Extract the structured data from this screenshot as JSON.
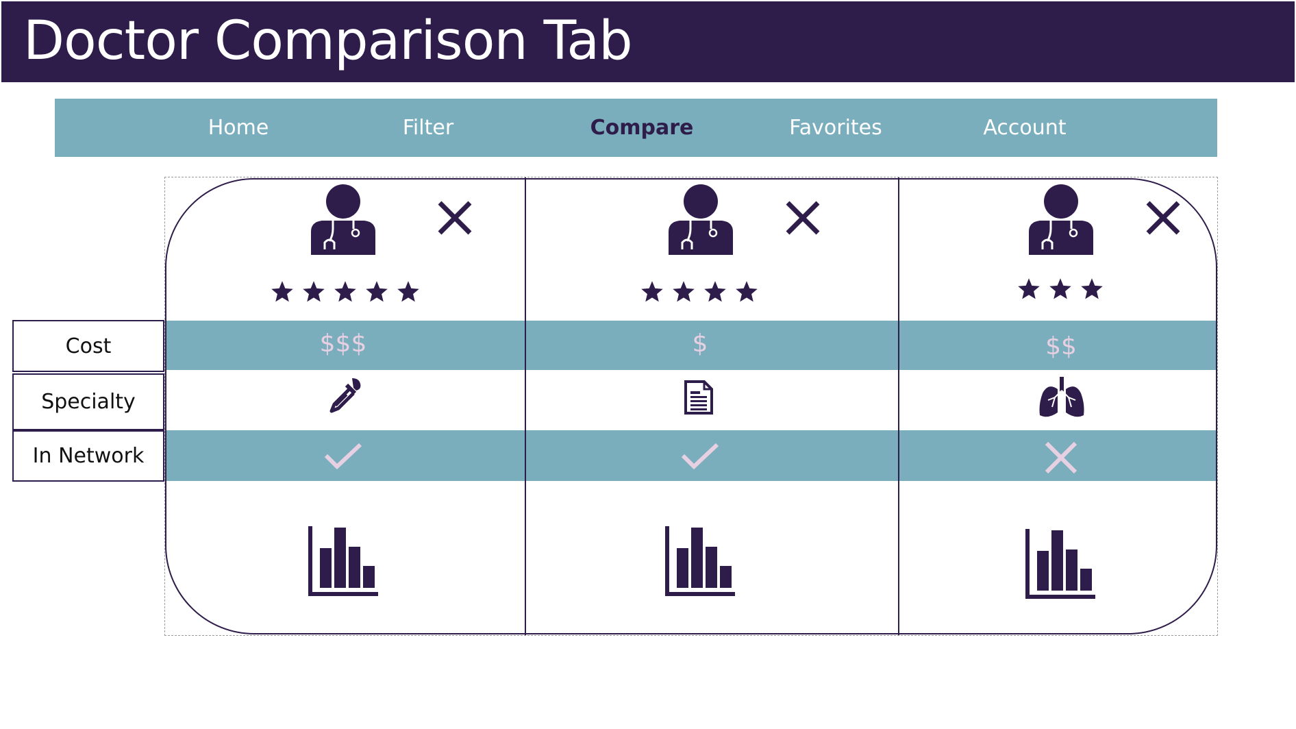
{
  "header": {
    "title": "Doctor Comparison Tab"
  },
  "nav": {
    "items": [
      {
        "label": "Home"
      },
      {
        "label": "Filter"
      },
      {
        "label": "Compare"
      },
      {
        "label": "Favorites"
      },
      {
        "label": "Account"
      }
    ],
    "active": "Compare"
  },
  "row_labels": {
    "cost": "Cost",
    "specialty": "Specialty",
    "in_network": "In Network"
  },
  "doctors": [
    {
      "rating": 5,
      "cost": "$$$",
      "specialty_icon": "dropper-icon",
      "in_network": true
    },
    {
      "rating": 4,
      "cost": "$",
      "specialty_icon": "document-icon",
      "in_network": true
    },
    {
      "rating": 3,
      "cost": "$$",
      "specialty_icon": "lungs-icon",
      "in_network": false
    }
  ],
  "colors": {
    "primary": "#2e1c4a",
    "band": "#7aaebd",
    "accent_pink": "#e8d0e3"
  }
}
